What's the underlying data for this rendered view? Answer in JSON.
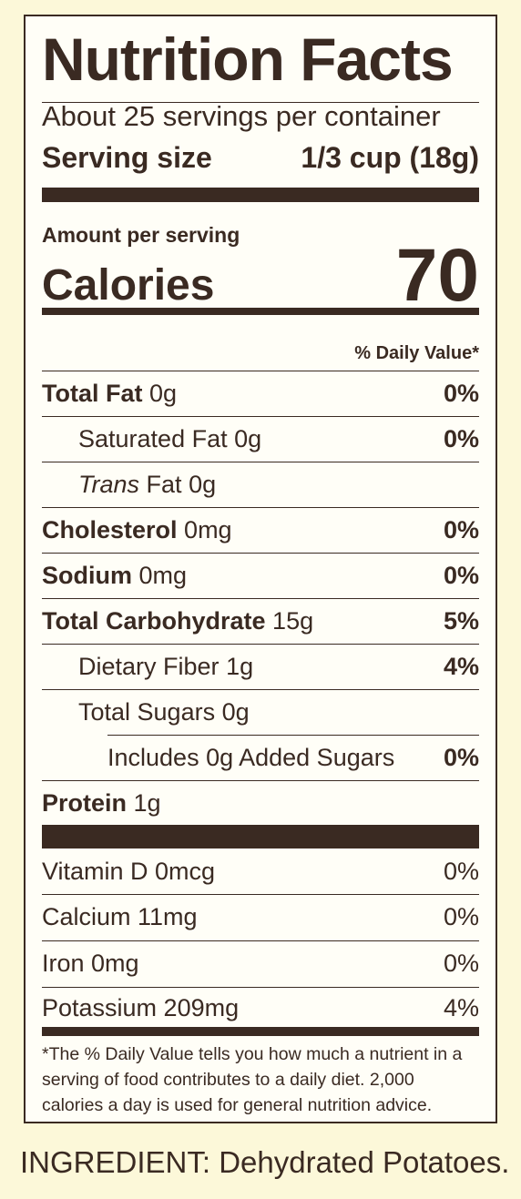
{
  "title": "Nutrition Facts",
  "servings_per_container": "About 25 servings per container",
  "serving_size": {
    "label": "Serving size",
    "value": "1/3 cup (18g)"
  },
  "amount_per_serving": "Amount per serving",
  "calories": {
    "label": "Calories",
    "value": "70"
  },
  "daily_value_header": "% Daily Value*",
  "nutrients": [
    {
      "name": "Total Fat",
      "amount": "0g",
      "dv": "0%"
    },
    {
      "name": "Saturated Fat",
      "amount": "0g",
      "dv": "0%"
    },
    {
      "name_italic": "Trans",
      "name": "Fat",
      "amount": "0g",
      "dv": ""
    },
    {
      "name": "Cholesterol",
      "amount": "0mg",
      "dv": "0%"
    },
    {
      "name": "Sodium",
      "amount": "0mg",
      "dv": "0%"
    },
    {
      "name": "Total Carbohydrate",
      "amount": "15g",
      "dv": "5%"
    },
    {
      "name": "Dietary Fiber",
      "amount": "1g",
      "dv": "4%"
    },
    {
      "name": "Total Sugars",
      "amount": "0g",
      "dv": ""
    },
    {
      "text": "Includes 0g Added Sugars",
      "dv": "0%"
    },
    {
      "name": "Protein",
      "amount": "1g",
      "dv": ""
    }
  ],
  "vitamins": [
    {
      "text": "Vitamin D 0mcg",
      "dv": "0%"
    },
    {
      "text": "Calcium 11mg",
      "dv": "0%"
    },
    {
      "text": "Iron 0mg",
      "dv": "0%"
    },
    {
      "text": "Potassium 209mg",
      "dv": "4%"
    }
  ],
  "footnote": "*The % Daily Value tells you how much a nutrient in a serving of food contributes to a daily diet. 2,000 calories a day is used for general nutrition advice.",
  "ingredients": "INGREDIENT: Dehydrated Potatoes."
}
